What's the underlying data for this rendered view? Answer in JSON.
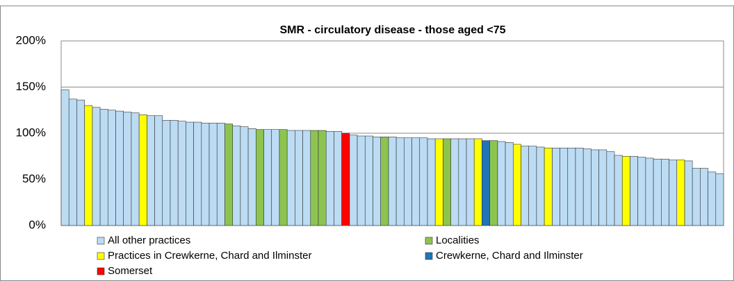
{
  "chart_data": {
    "type": "bar",
    "title": "SMR - circulatory disease - those aged <75",
    "ylim": [
      0,
      200
    ],
    "yticks": [
      {
        "value": 0,
        "label": "0%"
      },
      {
        "value": 50,
        "label": "50%"
      },
      {
        "value": 100,
        "label": "100%"
      },
      {
        "value": 150,
        "label": "150%"
      },
      {
        "value": 200,
        "label": "200%"
      }
    ],
    "grid": true,
    "legend": "bottom",
    "series": [
      {
        "name": "All other practices",
        "color": "#bcdcf4",
        "values": [
          147,
          137,
          136,
          null,
          128,
          126,
          125,
          124,
          123,
          122,
          null,
          119,
          119,
          114,
          114,
          113,
          112,
          112,
          111,
          111,
          111,
          null,
          108,
          107,
          105,
          null,
          104,
          104,
          null,
          103,
          103,
          103,
          null,
          null,
          102,
          102,
          null,
          98,
          97,
          97,
          96,
          null,
          96,
          95,
          95,
          95,
          95,
          94,
          null,
          null,
          94,
          94,
          94,
          null,
          null,
          null,
          91,
          90,
          null,
          86,
          86,
          85,
          null,
          84,
          84,
          84,
          84,
          83,
          82,
          82,
          80,
          76,
          null,
          75,
          74,
          73,
          72,
          72,
          71,
          null,
          70,
          62,
          62,
          58,
          56
        ]
      },
      {
        "name": "Localities",
        "color": "#8dc450",
        "values": [
          null,
          null,
          null,
          null,
          null,
          null,
          null,
          null,
          null,
          null,
          null,
          null,
          null,
          null,
          null,
          null,
          null,
          null,
          null,
          null,
          null,
          110,
          null,
          null,
          null,
          104,
          null,
          null,
          104,
          null,
          null,
          null,
          103,
          103,
          null,
          null,
          null,
          null,
          null,
          null,
          null,
          96,
          null,
          null,
          null,
          null,
          null,
          null,
          null,
          94,
          null,
          null,
          null,
          null,
          null,
          92,
          null,
          null,
          null,
          null,
          null,
          null,
          null,
          null,
          null,
          null,
          null,
          null,
          null,
          null,
          null,
          null,
          null,
          null,
          null,
          null,
          null,
          null,
          null,
          null,
          null,
          null,
          null,
          null,
          null
        ]
      },
      {
        "name": "Practices in Crewkerne, Chard and Ilminster",
        "color": "#ffff00",
        "values": [
          null,
          null,
          null,
          130,
          null,
          null,
          null,
          null,
          null,
          null,
          120,
          null,
          null,
          null,
          null,
          null,
          null,
          null,
          null,
          null,
          null,
          null,
          null,
          null,
          null,
          null,
          null,
          null,
          null,
          null,
          null,
          null,
          null,
          null,
          null,
          null,
          null,
          null,
          null,
          null,
          null,
          null,
          null,
          null,
          null,
          null,
          null,
          null,
          94,
          null,
          null,
          null,
          null,
          94,
          null,
          null,
          null,
          null,
          88,
          null,
          null,
          null,
          84,
          null,
          null,
          null,
          null,
          null,
          null,
          null,
          null,
          null,
          75,
          null,
          null,
          null,
          null,
          null,
          null,
          71,
          null,
          null,
          null,
          null,
          null
        ]
      },
      {
        "name": "Crewkerne, Chard and Ilminster",
        "color": "#1f75b8",
        "values": [
          null,
          null,
          null,
          null,
          null,
          null,
          null,
          null,
          null,
          null,
          null,
          null,
          null,
          null,
          null,
          null,
          null,
          null,
          null,
          null,
          null,
          null,
          null,
          null,
          null,
          null,
          null,
          null,
          null,
          null,
          null,
          null,
          null,
          null,
          null,
          null,
          null,
          null,
          null,
          null,
          null,
          null,
          null,
          null,
          null,
          null,
          null,
          null,
          null,
          null,
          null,
          null,
          null,
          null,
          92,
          null,
          null,
          null,
          null,
          null,
          null,
          null,
          null,
          null,
          null,
          null,
          null,
          null,
          null,
          null,
          null,
          null,
          null,
          null,
          null,
          null,
          null,
          null,
          null,
          null,
          null,
          null,
          null,
          null,
          null
        ]
      },
      {
        "name": "Somerset",
        "color": "#ff0000",
        "values": [
          null,
          null,
          null,
          null,
          null,
          null,
          null,
          null,
          null,
          null,
          null,
          null,
          null,
          null,
          null,
          null,
          null,
          null,
          null,
          null,
          null,
          null,
          null,
          null,
          null,
          null,
          null,
          null,
          null,
          null,
          null,
          null,
          null,
          null,
          null,
          null,
          100,
          null,
          null,
          null,
          null,
          null,
          null,
          null,
          null,
          null,
          null,
          null,
          null,
          null,
          null,
          null,
          null,
          null,
          null,
          null,
          null,
          null,
          null,
          null,
          null,
          null,
          null,
          null,
          null,
          null,
          null,
          null,
          null,
          null,
          null,
          null,
          null,
          null,
          null,
          null,
          null,
          null,
          null,
          null,
          null,
          null,
          null,
          null,
          null
        ]
      }
    ]
  }
}
